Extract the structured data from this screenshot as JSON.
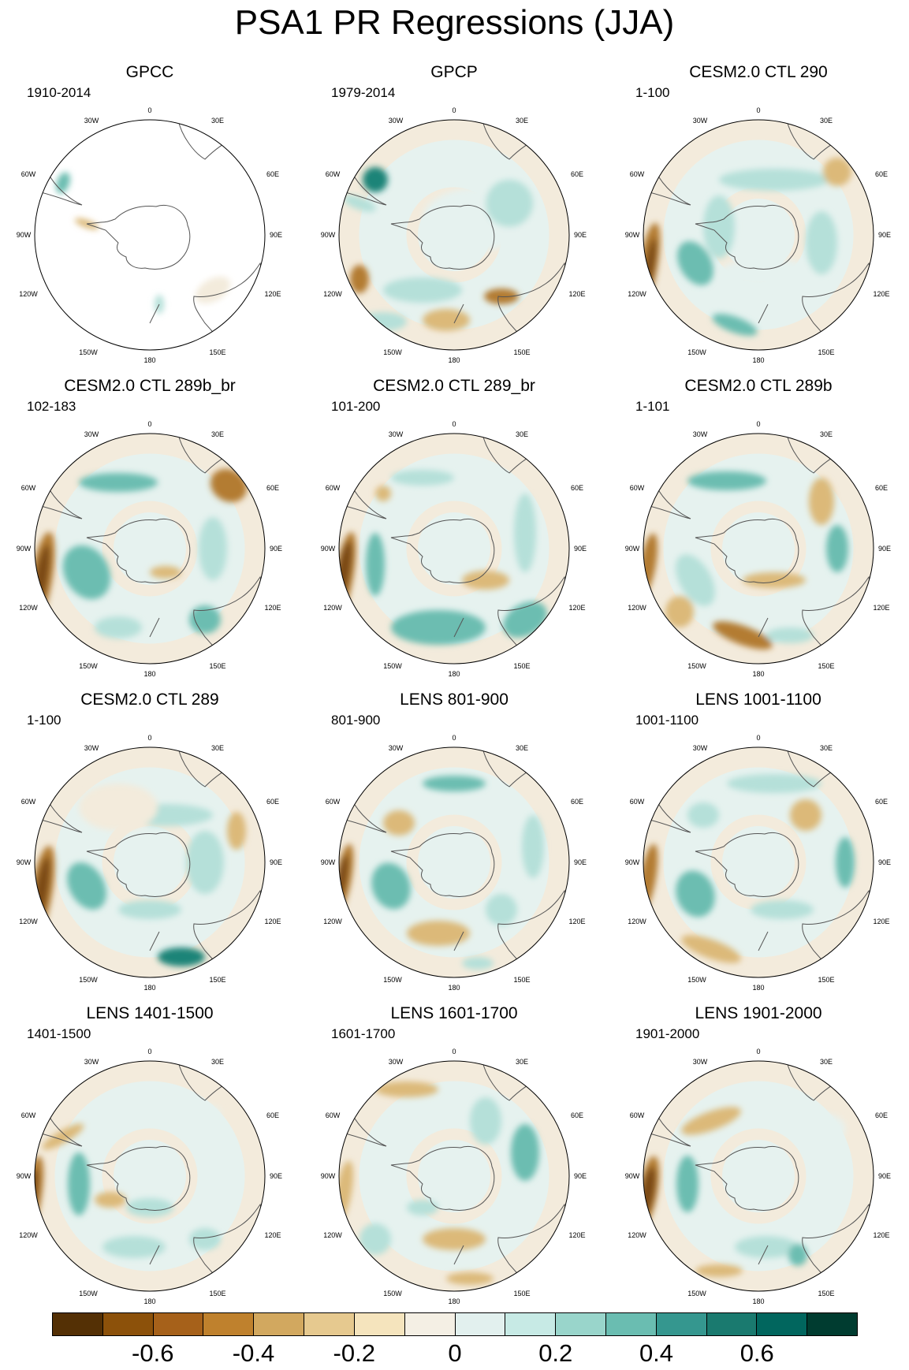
{
  "title": "PSA1 PR Regressions (JJA)",
  "longitude_labels": {
    "top": "0",
    "bottom": "180",
    "30W": "30W",
    "30E": "30E",
    "60W": "60W",
    "60E": "60E",
    "90W": "90W",
    "90E": "90E",
    "120W": "120W",
    "120E": "120E",
    "150W": "150W",
    "150E": "150E"
  },
  "panels": [
    {
      "title": "GPCC",
      "period": "1910-2014",
      "land_only": true
    },
    {
      "title": "GPCP",
      "period": "1979-2014"
    },
    {
      "title": "CESM2.0 CTL 290",
      "period": "1-100"
    },
    {
      "title": "CESM2.0 CTL 289b_br",
      "period": "102-183"
    },
    {
      "title": "CESM2.0 CTL 289_br",
      "period": "101-200"
    },
    {
      "title": "CESM2.0 CTL 289b",
      "period": "1-101"
    },
    {
      "title": "CESM2.0 CTL 289",
      "period": "1-100"
    },
    {
      "title": "LENS 801-900",
      "period": "801-900"
    },
    {
      "title": "LENS 1001-1100",
      "period": "1001-1100"
    },
    {
      "title": "LENS 1401-1500",
      "period": "1401-1500"
    },
    {
      "title": "LENS 1601-1700",
      "period": "1601-1700"
    },
    {
      "title": "LENS 1901-2000",
      "period": "1901-2000"
    }
  ],
  "colorbar": {
    "colors": [
      "#543005",
      "#8c510a",
      "#a6611a",
      "#bf812d",
      "#d2a85f",
      "#e6c98f",
      "#f5e4bd",
      "#f4efe4",
      "#e2f0ee",
      "#c7eae5",
      "#99d5cb",
      "#6abdb1",
      "#35978f",
      "#1a7a6f",
      "#01665e",
      "#003c30"
    ],
    "tick_labels": [
      "-0.6",
      "-0.4",
      "-0.2",
      "0",
      "0.2",
      "0.4",
      "0.6"
    ],
    "tick_values": [
      -0.6,
      -0.4,
      -0.2,
      0,
      0.2,
      0.4,
      0.6
    ],
    "range": [
      -0.8,
      0.8
    ]
  },
  "colors": {
    "brown_strong": "#7a4a12",
    "brown_medium": "#b37c32",
    "brown_light": "#dcb979",
    "teal_strong": "#1f8478",
    "teal_medium": "#6cbdb1",
    "teal_light": "#b5e0d9",
    "neutral_warm": "#f3ebdc",
    "neutral_cool": "#e6f2ef"
  }
}
